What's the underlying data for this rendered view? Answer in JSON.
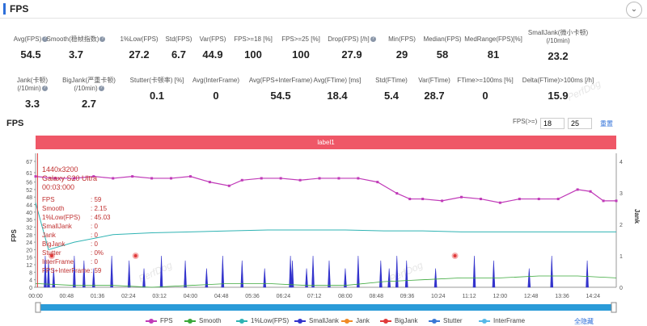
{
  "header": {
    "title": "FPS",
    "collapse_icon": "chevron-down-icon"
  },
  "stats_row1": [
    {
      "label": "Avg(FPS)",
      "value": "54.5",
      "help": true
    },
    {
      "label": "Smooth(稳帧指数)",
      "value": "3.7",
      "help": true
    },
    {
      "label": "1%Low(FPS)",
      "value": "27.2",
      "help": false
    },
    {
      "label": "Std(FPS)",
      "value": "6.7",
      "help": false
    },
    {
      "label": "Var(FPS)",
      "value": "44.9",
      "help": false
    },
    {
      "label": "FPS>=18 [%]",
      "value": "100",
      "help": false
    },
    {
      "label": "FPS>=25 [%]",
      "value": "100",
      "help": false
    },
    {
      "label": "Drop(FPS) [/h]",
      "value": "27.9",
      "help": true
    },
    {
      "label": "Min(FPS)",
      "value": "29",
      "help": false
    },
    {
      "label": "Median(FPS)",
      "value": "58",
      "help": false
    },
    {
      "label": "MedRange(FPS)[%]",
      "value": "81",
      "help": false
    },
    {
      "label": "SmallJank(微小卡顿)\n(/10min)",
      "value": "23.2",
      "help": false
    }
  ],
  "stats_row2": [
    {
      "label": "Jank(卡顿)\n(/10min)",
      "value": "3.3",
      "help": true
    },
    {
      "label": "BigJank(严重卡顿)\n(/10min)",
      "value": "2.7",
      "help": true
    },
    {
      "label": "Stutter(卡顿率) [%]",
      "value": "0.1",
      "help": false
    },
    {
      "label": "Avg(InterFrame)",
      "value": "0",
      "help": false
    },
    {
      "label": "Avg(FPS+InterFrame)",
      "value": "54.5",
      "help": false
    },
    {
      "label": "Avg(FTime) [ms]",
      "value": "18.4",
      "help": false
    },
    {
      "label": "Std(FTime)",
      "value": "5.4",
      "help": false
    },
    {
      "label": "Var(FTime)",
      "value": "28.7",
      "help": false
    },
    {
      "label": "FTime>=100ms [%]",
      "value": "0",
      "help": false
    },
    {
      "label": "Delta(FTime)>100ms [/h]",
      "value": "15.9",
      "help": false
    }
  ],
  "watermark": "PerfDog",
  "chart_section": {
    "title": "FPS",
    "fps_threshold_label": "FPS(>=)",
    "fps_threshold_1": "18",
    "fps_threshold_2": "25",
    "reset_label": "重置",
    "banner_label": "label1"
  },
  "tooltip": {
    "lines": [
      "1440x3200",
      "Galaxy S20 Ultra",
      "00:03:000"
    ],
    "rows": [
      {
        "k": "FPS",
        "v": ": 59"
      },
      {
        "k": "Smooth",
        "v": ": 2.15"
      },
      {
        "k": "1%Low(FPS)",
        "v": ": 45.03"
      },
      {
        "k": "SmallJank",
        "v": ": 0"
      },
      {
        "k": "Jank",
        "v": ": 0"
      },
      {
        "k": "BigJank",
        "v": ": 0"
      },
      {
        "k": "Stutter",
        "v": ": 0%"
      },
      {
        "k": "InterFrame",
        "v": ": 0"
      },
      {
        "k": "FPS+InterFrame",
        "v": ": 59"
      }
    ]
  },
  "legend": {
    "items": [
      {
        "name": "FPS",
        "color": "#c03ab8"
      },
      {
        "name": "Smooth",
        "color": "#3aa83a"
      },
      {
        "name": "1%Low(FPS)",
        "color": "#2fb3b3"
      },
      {
        "name": "SmallJank",
        "color": "#3333cc"
      },
      {
        "name": "Jank",
        "color": "#f08a24"
      },
      {
        "name": "BigJank",
        "color": "#e03a3a"
      },
      {
        "name": "Stutter",
        "color": "#3a78d6"
      },
      {
        "name": "InterFrame",
        "color": "#58b9e8"
      }
    ],
    "toggle_all": "全隐藏"
  },
  "chart_data": {
    "type": "line",
    "x_ticks": [
      "00:00",
      "00:48",
      "01:36",
      "02:24",
      "03:12",
      "04:00",
      "04:48",
      "05:36",
      "06:24",
      "07:12",
      "08:00",
      "08:48",
      "09:36",
      "10:24",
      "11:12",
      "12:00",
      "12:48",
      "13:36",
      "14:24"
    ],
    "y_left_label": "FPS",
    "y_left_ticks": [
      0,
      4,
      8,
      12,
      16,
      20,
      24,
      28,
      32,
      36,
      40,
      44,
      48,
      52,
      56,
      61,
      67
    ],
    "ylim_left": [
      0,
      67
    ],
    "y_right_label": "Jank",
    "y_right_ticks": [
      0,
      1,
      2,
      3,
      4
    ],
    "ylim_right": [
      0,
      4
    ],
    "xlim_sec": [
      0,
      900
    ],
    "series": [
      {
        "name": "FPS",
        "color": "#c03ab8",
        "points": [
          [
            0,
            59
          ],
          [
            30,
            58
          ],
          [
            60,
            58
          ],
          [
            90,
            59
          ],
          [
            120,
            58
          ],
          [
            150,
            59
          ],
          [
            180,
            58
          ],
          [
            210,
            58
          ],
          [
            240,
            59
          ],
          [
            270,
            56
          ],
          [
            300,
            54
          ],
          [
            320,
            57
          ],
          [
            350,
            58
          ],
          [
            380,
            58
          ],
          [
            410,
            57
          ],
          [
            440,
            58
          ],
          [
            470,
            58
          ],
          [
            500,
            58
          ],
          [
            530,
            56
          ],
          [
            560,
            50
          ],
          [
            580,
            47
          ],
          [
            600,
            47
          ],
          [
            630,
            46
          ],
          [
            660,
            48
          ],
          [
            690,
            47
          ],
          [
            720,
            45
          ],
          [
            750,
            47
          ],
          [
            780,
            47
          ],
          [
            810,
            47
          ],
          [
            840,
            52
          ],
          [
            860,
            51
          ],
          [
            880,
            46
          ],
          [
            900,
            46
          ]
        ]
      },
      {
        "name": "Smooth",
        "color": "#3aa83a",
        "points": [
          [
            0,
            2
          ],
          [
            60,
            1
          ],
          [
            120,
            1
          ],
          [
            180,
            0
          ],
          [
            240,
            1
          ],
          [
            300,
            2
          ],
          [
            360,
            2
          ],
          [
            420,
            1
          ],
          [
            480,
            1
          ],
          [
            540,
            3
          ],
          [
            600,
            4
          ],
          [
            660,
            5
          ],
          [
            720,
            5
          ],
          [
            780,
            6
          ],
          [
            840,
            6
          ],
          [
            900,
            5
          ]
        ]
      },
      {
        "name": "1%Low(FPS)",
        "color": "#2fb3b3",
        "points": [
          [
            0,
            45
          ],
          [
            20,
            20
          ],
          [
            60,
            24
          ],
          [
            120,
            28
          ],
          [
            180,
            29
          ],
          [
            240,
            29.5
          ],
          [
            300,
            30
          ],
          [
            360,
            30.5
          ],
          [
            420,
            30.5
          ],
          [
            480,
            30.5
          ],
          [
            540,
            30
          ],
          [
            600,
            30
          ],
          [
            660,
            29.5
          ],
          [
            720,
            29.5
          ],
          [
            780,
            29.5
          ],
          [
            840,
            29.5
          ],
          [
            900,
            29.5
          ]
        ]
      }
    ],
    "jank_spikes_sec": [
      15,
      20,
      28,
      60,
      75,
      90,
      118,
      145,
      168,
      195,
      232,
      265,
      290,
      320,
      355,
      395,
      398,
      420,
      430,
      455,
      480,
      500,
      535,
      548,
      560,
      575,
      620,
      680,
      710,
      765,
      800,
      855
    ],
    "bigjank_points_sec": [
      25,
      155,
      650
    ]
  }
}
